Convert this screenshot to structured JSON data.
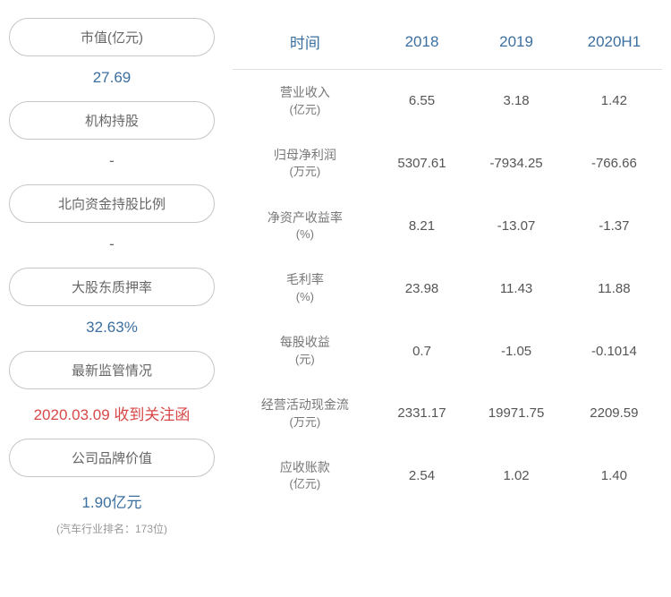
{
  "leftPanel": {
    "items": [
      {
        "label": "市值(亿元)",
        "value": "27.69",
        "valueClass": "blue",
        "subtext": ""
      },
      {
        "label": "机构持股",
        "value": "-",
        "valueClass": "dash",
        "subtext": ""
      },
      {
        "label": "北向资金持股比例",
        "value": "-",
        "valueClass": "dash",
        "subtext": ""
      },
      {
        "label": "大股东质押率",
        "value": "32.63%",
        "valueClass": "blue",
        "subtext": ""
      },
      {
        "label": "最新监管情况",
        "value": "2020.03.09 收到关注函",
        "valueClass": "red",
        "subtext": ""
      },
      {
        "label": "公司品牌价值",
        "value": "1.90亿元",
        "valueClass": "blue",
        "subtext": "(汽车行业排名：173位)"
      }
    ]
  },
  "table": {
    "headers": [
      "时间",
      "2018",
      "2019",
      "2020H1"
    ],
    "rows": [
      {
        "label": "营业收入",
        "unit": "(亿元)",
        "values": [
          "6.55",
          "3.18",
          "1.42"
        ]
      },
      {
        "label": "归母净利润",
        "unit": "(万元)",
        "values": [
          "5307.61",
          "-7934.25",
          "-766.66"
        ]
      },
      {
        "label": "净资产收益率",
        "unit": "(%)",
        "values": [
          "8.21",
          "-13.07",
          "-1.37"
        ]
      },
      {
        "label": "毛利率",
        "unit": "(%)",
        "values": [
          "23.98",
          "11.43",
          "11.88"
        ]
      },
      {
        "label": "每股收益",
        "unit": "(元)",
        "values": [
          "0.7",
          "-1.05",
          "-0.1014"
        ]
      },
      {
        "label": "经营活动现金流",
        "unit": "(万元)",
        "values": [
          "2331.17",
          "19971.75",
          "2209.59"
        ]
      },
      {
        "label": "应收账款",
        "unit": "(亿元)",
        "values": [
          "2.54",
          "1.02",
          "1.40"
        ]
      }
    ]
  }
}
